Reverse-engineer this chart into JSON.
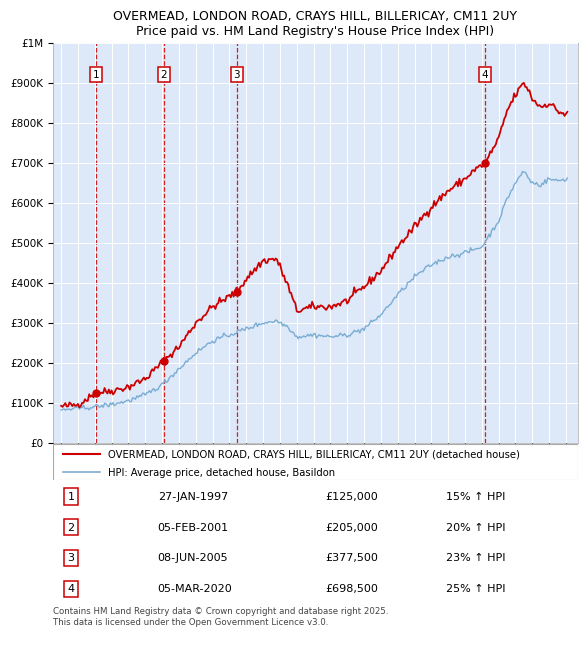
{
  "title": "OVERMEAD, LONDON ROAD, CRAYS HILL, BILLERICAY, CM11 2UY",
  "subtitle": "Price paid vs. HM Land Registry's House Price Index (HPI)",
  "red_line_label": "OVERMEAD, LONDON ROAD, CRAYS HILL, BILLERICAY, CM11 2UY (detached house)",
  "blue_line_label": "HPI: Average price, detached house, Basildon",
  "footer": "Contains HM Land Registry data © Crown copyright and database right 2025.\nThis data is licensed under the Open Government Licence v3.0.",
  "transactions": [
    {
      "num": 1,
      "date": "27-JAN-1997",
      "price": 125000,
      "pct": "15%",
      "year": 1997.07
    },
    {
      "num": 2,
      "date": "05-FEB-2001",
      "price": 205000,
      "pct": "20%",
      "year": 2001.1
    },
    {
      "num": 3,
      "date": "08-JUN-2005",
      "price": 377500,
      "pct": "23%",
      "year": 2005.44
    },
    {
      "num": 4,
      "date": "05-MAR-2020",
      "price": 698500,
      "pct": "25%",
      "year": 2020.18
    }
  ],
  "ylim": [
    0,
    1000000
  ],
  "yticks": [
    0,
    100000,
    200000,
    300000,
    400000,
    500000,
    600000,
    700000,
    800000,
    900000,
    1000000
  ],
  "ytick_labels": [
    "£0",
    "£100K",
    "£200K",
    "£300K",
    "£400K",
    "£500K",
    "£600K",
    "£700K",
    "£800K",
    "£900K",
    "£1M"
  ],
  "plot_bg_color": "#dde8f8",
  "red_color": "#cc0000",
  "blue_color": "#7aadd4",
  "grid_color": "#ffffff",
  "xmin": 1994.5,
  "xmax": 2025.7,
  "red_anchors": [
    [
      1995.0,
      90000
    ],
    [
      1996.0,
      96000
    ],
    [
      1997.07,
      125000
    ],
    [
      1998.0,
      130000
    ],
    [
      1999.0,
      140000
    ],
    [
      2000.0,
      160000
    ],
    [
      2001.1,
      205000
    ],
    [
      2002.0,
      240000
    ],
    [
      2003.0,
      300000
    ],
    [
      2004.0,
      340000
    ],
    [
      2005.44,
      377500
    ],
    [
      2006.0,
      410000
    ],
    [
      2007.0,
      455000
    ],
    [
      2007.8,
      460000
    ],
    [
      2008.5,
      390000
    ],
    [
      2009.0,
      330000
    ],
    [
      2010.0,
      340000
    ],
    [
      2011.0,
      340000
    ],
    [
      2012.0,
      355000
    ],
    [
      2013.0,
      390000
    ],
    [
      2014.0,
      430000
    ],
    [
      2015.0,
      490000
    ],
    [
      2016.0,
      540000
    ],
    [
      2017.0,
      590000
    ],
    [
      2017.5,
      610000
    ],
    [
      2018.0,
      630000
    ],
    [
      2019.0,
      660000
    ],
    [
      2019.5,
      680000
    ],
    [
      2020.18,
      698500
    ],
    [
      2021.0,
      760000
    ],
    [
      2021.5,
      830000
    ],
    [
      2022.0,
      870000
    ],
    [
      2022.5,
      900000
    ],
    [
      2022.8,
      880000
    ],
    [
      2023.0,
      860000
    ],
    [
      2023.5,
      840000
    ],
    [
      2024.0,
      850000
    ],
    [
      2024.5,
      830000
    ],
    [
      2025.0,
      820000
    ]
  ],
  "blue_anchors": [
    [
      1995.0,
      82000
    ],
    [
      1996.0,
      86000
    ],
    [
      1997.0,
      90000
    ],
    [
      1998.0,
      96000
    ],
    [
      1999.0,
      105000
    ],
    [
      2000.0,
      120000
    ],
    [
      2001.0,
      145000
    ],
    [
      2002.0,
      185000
    ],
    [
      2003.0,
      225000
    ],
    [
      2004.0,
      255000
    ],
    [
      2005.0,
      270000
    ],
    [
      2006.0,
      285000
    ],
    [
      2007.0,
      300000
    ],
    [
      2007.8,
      305000
    ],
    [
      2008.5,
      290000
    ],
    [
      2009.0,
      265000
    ],
    [
      2010.0,
      270000
    ],
    [
      2011.0,
      265000
    ],
    [
      2012.0,
      270000
    ],
    [
      2013.0,
      285000
    ],
    [
      2014.0,
      320000
    ],
    [
      2015.0,
      370000
    ],
    [
      2016.0,
      415000
    ],
    [
      2017.0,
      445000
    ],
    [
      2018.0,
      465000
    ],
    [
      2019.0,
      475000
    ],
    [
      2020.0,
      490000
    ],
    [
      2021.0,
      555000
    ],
    [
      2021.5,
      610000
    ],
    [
      2022.0,
      650000
    ],
    [
      2022.5,
      680000
    ],
    [
      2022.8,
      660000
    ],
    [
      2023.0,
      650000
    ],
    [
      2023.5,
      645000
    ],
    [
      2024.0,
      660000
    ],
    [
      2024.5,
      655000
    ],
    [
      2025.0,
      660000
    ]
  ]
}
